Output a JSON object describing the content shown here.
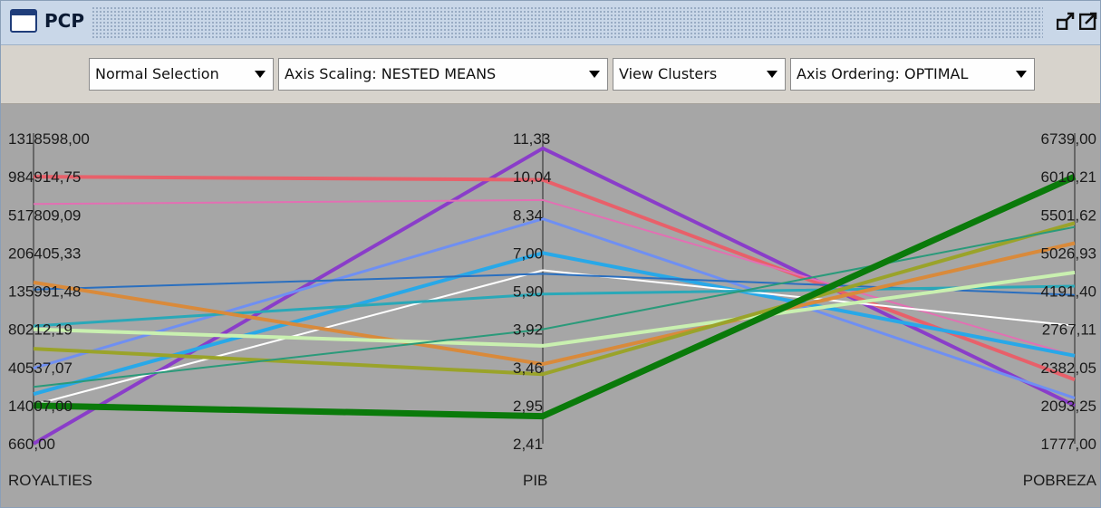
{
  "window": {
    "title": "PCP"
  },
  "toolbar": {
    "selection": "Normal Selection",
    "scaling": "Axis Scaling: NESTED MEANS",
    "clusters": "View Clusters",
    "ordering": "Axis Ordering: OPTIMAL"
  },
  "icons": {
    "window": "window-icon",
    "restore": "restore-icon",
    "maximize": "maximize-icon"
  },
  "colors": {
    "background": "#a6a6a6",
    "toolbar": "#d7d3cc",
    "titlebar": "#c9d7e8"
  },
  "chart_data": {
    "type": "parallel-coordinates",
    "axes": [
      {
        "name": "ROYALTIES",
        "ticks": [
          "1318598,00",
          "984914,75",
          "517809,09",
          "206405,33",
          "135991,48",
          "80212,19",
          "40537,07",
          "14007,00",
          "660,00"
        ]
      },
      {
        "name": "PIB",
        "ticks": [
          "11,33",
          "10,04",
          "8,34",
          "7,00",
          "5,90",
          "3,92",
          "3,46",
          "2,95",
          "2,41"
        ]
      },
      {
        "name": "POBREZA",
        "ticks": [
          "6739,00",
          "6010,21",
          "5501,62",
          "5026,93",
          "4191,40",
          "2767,11",
          "2382,05",
          "2093,25",
          "1777,00"
        ]
      }
    ],
    "scaling": "nested means",
    "lines": [
      {
        "color": "#8a3dc9",
        "width": 4,
        "values": [
          660,
          11,
          2093
        ]
      },
      {
        "color": "#e8606a",
        "width": 4,
        "values": [
          984915,
          9.9,
          2290
        ]
      },
      {
        "color": "#e36fb3",
        "width": 2,
        "values": [
          650000,
          9.0,
          2500
        ]
      },
      {
        "color": "#6f8ff2",
        "width": 3,
        "values": [
          40000,
          8.2,
          2150
        ]
      },
      {
        "color": "#28a8e8",
        "width": 4,
        "values": [
          22000,
          7.0,
          2500
        ]
      },
      {
        "color": "#ffffff",
        "width": 2,
        "values": [
          14500,
          6.5,
          2900
        ]
      },
      {
        "color": "#2a6fbf",
        "width": 2,
        "values": [
          139000,
          6.4,
          4050
        ]
      },
      {
        "color": "#2aa8b8",
        "width": 3,
        "values": [
          85000,
          5.75,
          4300
        ]
      },
      {
        "color": "#d98a3b",
        "width": 4,
        "values": [
          152000,
          3.5,
          5150
        ]
      },
      {
        "color": "#c9f0b0",
        "width": 4,
        "values": [
          80212,
          3.72,
          4600
        ]
      },
      {
        "color": "#9aa32a",
        "width": 4,
        "values": [
          60000,
          3.37,
          5400
        ]
      },
      {
        "color": "#2a9a7a",
        "width": 2,
        "values": [
          27000,
          3.92,
          5350
        ]
      },
      {
        "color": "#0a7a0a",
        "width": 7,
        "values": [
          14007,
          2.8,
          6010
        ]
      }
    ]
  }
}
